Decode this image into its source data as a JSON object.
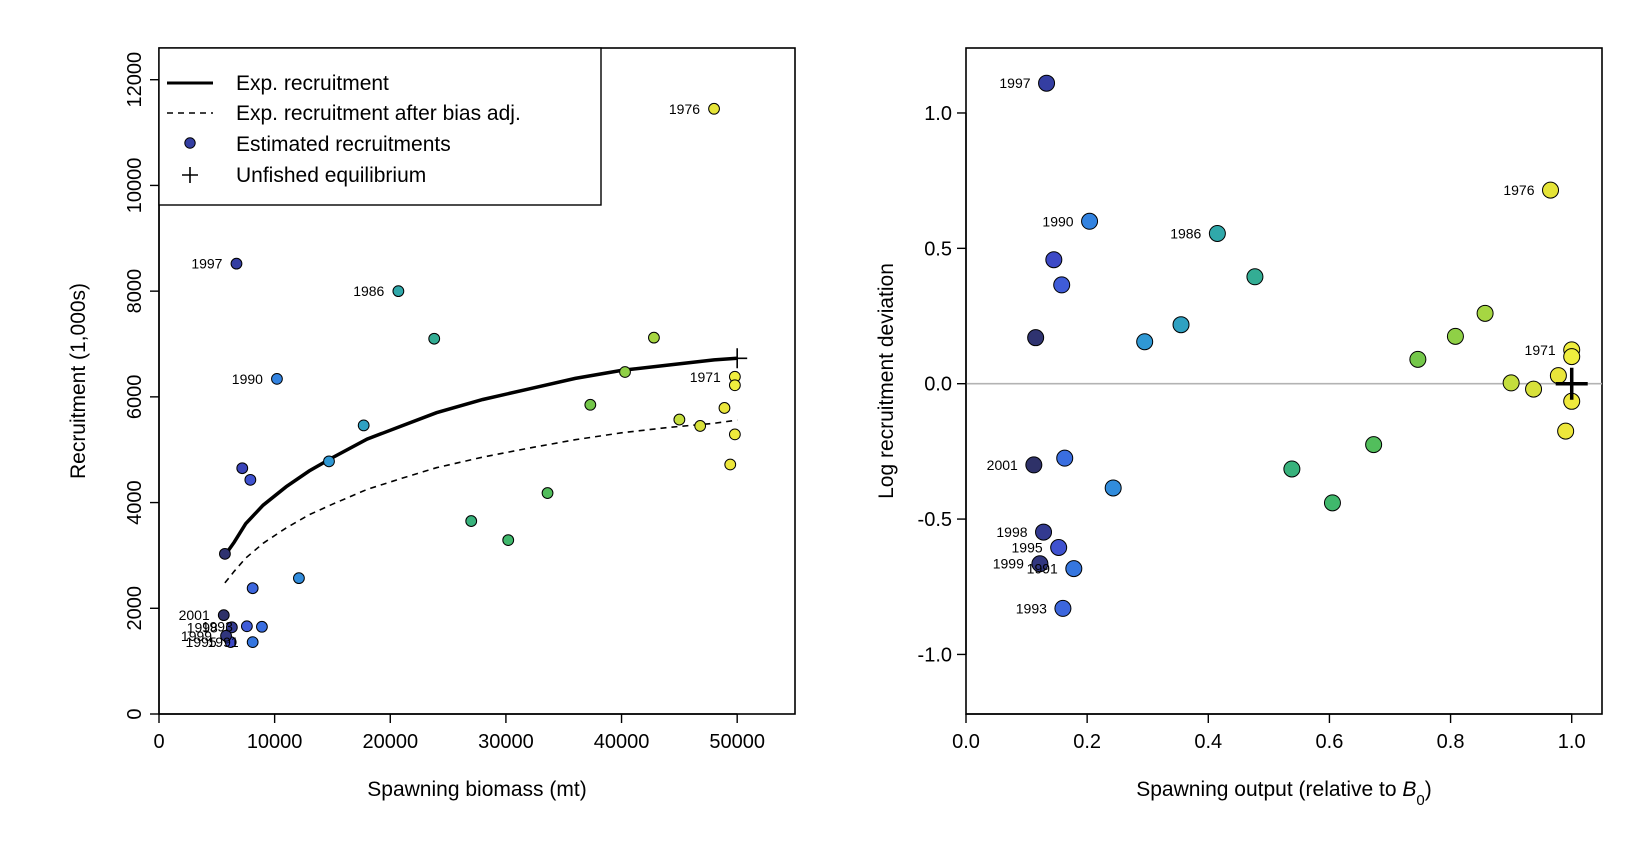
{
  "chart_data": [
    {
      "type": "scatter",
      "xlabel": "Spawning biomass (mt)",
      "ylabel": "Recruitment (1,000s)",
      "xlim": [
        0,
        55000
      ],
      "ylim": [
        0,
        12600
      ],
      "xticks": [
        0,
        10000,
        20000,
        30000,
        40000,
        50000
      ],
      "yticks": [
        0,
        2000,
        4000,
        6000,
        8000,
        10000,
        12000
      ],
      "grid": false,
      "legend_position": "top-left",
      "legend": [
        {
          "label": "Exp. recruitment",
          "symbol": "solid-line"
        },
        {
          "label": "Exp. recruitment after bias adj.",
          "symbol": "dashed-line"
        },
        {
          "label": "Estimated recruitments",
          "symbol": "dot"
        },
        {
          "label": "Unfished equilibrium",
          "symbol": "plus"
        }
      ],
      "curves": [
        {
          "name": "Exp. recruitment",
          "style": "solid",
          "x": [
            5700,
            6500,
            7500,
            9000,
            11000,
            13000,
            15000,
            18000,
            21000,
            24000,
            28000,
            32000,
            36000,
            40000,
            44000,
            48000,
            50000
          ],
          "y": [
            3000,
            3250,
            3600,
            3950,
            4300,
            4600,
            4850,
            5200,
            5450,
            5700,
            5950,
            6150,
            6350,
            6500,
            6600,
            6700,
            6730
          ]
        },
        {
          "name": "Exp. recruitment after bias adj.",
          "style": "dashed",
          "x": [
            5700,
            6500,
            7500,
            9000,
            11000,
            13000,
            15000,
            18000,
            21000,
            24000,
            28000,
            32000,
            36000,
            40000,
            44000,
            48000,
            50000
          ],
          "y": [
            2480,
            2700,
            2950,
            3230,
            3520,
            3770,
            3970,
            4250,
            4460,
            4660,
            4860,
            5030,
            5190,
            5320,
            5420,
            5500,
            5560
          ]
        },
        {
          "name": "Unfished equilibrium",
          "style": "plus",
          "x": [
            50000
          ],
          "y": [
            6730
          ]
        }
      ],
      "points": [
        {
          "x": 49800,
          "y": 6380,
          "label": "1971",
          "color": "#F0EE3E"
        },
        {
          "x": 49800,
          "y": 6220,
          "label": "",
          "color": "#F0EE3E"
        },
        {
          "x": 49800,
          "y": 5290,
          "label": "",
          "color": "#EFE93C"
        },
        {
          "x": 49400,
          "y": 4720,
          "label": "",
          "color": "#EDE73B"
        },
        {
          "x": 48900,
          "y": 5790,
          "label": "",
          "color": "#E9E53A"
        },
        {
          "x": 48000,
          "y": 11450,
          "label": "1976",
          "color": "#E5E438"
        },
        {
          "x": 46800,
          "y": 5450,
          "label": "",
          "color": "#D8E13A"
        },
        {
          "x": 45000,
          "y": 5570,
          "label": "",
          "color": "#C4DE3D"
        },
        {
          "x": 42800,
          "y": 7120,
          "label": "",
          "color": "#A6D642"
        },
        {
          "x": 40300,
          "y": 6470,
          "label": "",
          "color": "#8FD046"
        },
        {
          "x": 37300,
          "y": 5850,
          "label": "",
          "color": "#74C74A"
        },
        {
          "x": 33600,
          "y": 4180,
          "label": "",
          "color": "#52BE5C"
        },
        {
          "x": 30200,
          "y": 3290,
          "label": "",
          "color": "#40B86C"
        },
        {
          "x": 27000,
          "y": 3650,
          "label": "",
          "color": "#38B27C"
        },
        {
          "x": 23800,
          "y": 7100,
          "label": "",
          "color": "#33AD94"
        },
        {
          "x": 20700,
          "y": 8000,
          "label": "1986",
          "color": "#30A8AA"
        },
        {
          "x": 17700,
          "y": 5460,
          "label": "",
          "color": "#2FA1C2"
        },
        {
          "x": 14700,
          "y": 4780,
          "label": "",
          "color": "#2F98D4"
        },
        {
          "x": 12100,
          "y": 2570,
          "label": "",
          "color": "#318CDC"
        },
        {
          "x": 10200,
          "y": 6340,
          "label": "1990",
          "color": "#3383E0"
        },
        {
          "x": 8100,
          "y": 1360,
          "label": "1991",
          "color": "#3576DF"
        },
        {
          "x": 8900,
          "y": 1650,
          "label": "",
          "color": "#3A6EE0"
        },
        {
          "x": 8100,
          "y": 2380,
          "label": "",
          "color": "#3C66DD"
        },
        {
          "x": 7600,
          "y": 1660,
          "label": "1993",
          "color": "#3F5CD8"
        },
        {
          "x": 7900,
          "y": 4430,
          "label": "",
          "color": "#3F52D0"
        },
        {
          "x": 6200,
          "y": 1360,
          "label": "1995",
          "color": "#3D49C6"
        },
        {
          "x": 7200,
          "y": 4650,
          "label": "",
          "color": "#3A44B8"
        },
        {
          "x": 6700,
          "y": 8520,
          "label": "1997",
          "color": "#343EA2"
        },
        {
          "x": 6300,
          "y": 1640,
          "label": "1998",
          "color": "#333A90"
        },
        {
          "x": 5800,
          "y": 1480,
          "label": "1999",
          "color": "#31367E"
        },
        {
          "x": 5700,
          "y": 3030,
          "label": "",
          "color": "#2F3370"
        },
        {
          "x": 5600,
          "y": 1870,
          "label": "2001",
          "color": "#2E3168"
        }
      ]
    },
    {
      "type": "scatter",
      "xlabel": "Spawning output (relative to B0)",
      "xlabel_main": "Spawning output (relative to ",
      "xlabel_var": "B",
      "xlabel_sub": "0",
      "xlabel_end": ")",
      "ylabel": "Log recruitment deviation",
      "xlim": [
        0,
        1.05
      ],
      "ylim": [
        -1.22,
        1.24
      ],
      "xticks": [
        "0.0",
        "0.2",
        "0.4",
        "0.6",
        "0.8",
        "1.0"
      ],
      "yticks": [
        "-1.0",
        "-0.5",
        "0.0",
        "0.5",
        "1.0"
      ],
      "hline_y": 0,
      "grid": false,
      "unfished_equilibrium": {
        "x": 1.0,
        "y": 0.0
      },
      "points": [
        {
          "x": 1.0,
          "y": 0.125,
          "label": "1971",
          "color": "#F0EE3E"
        },
        {
          "x": 1.0,
          "y": 0.1,
          "label": "",
          "color": "#F0EE3E"
        },
        {
          "x": 1.0,
          "y": -0.065,
          "label": "",
          "color": "#EFE93C"
        },
        {
          "x": 0.99,
          "y": -0.175,
          "label": "",
          "color": "#EDE73B"
        },
        {
          "x": 0.978,
          "y": 0.03,
          "label": "",
          "color": "#E9E53A"
        },
        {
          "x": 0.965,
          "y": 0.715,
          "label": "1976",
          "color": "#E5E438"
        },
        {
          "x": 0.937,
          "y": -0.02,
          "label": "",
          "color": "#D8E13A"
        },
        {
          "x": 0.9,
          "y": 0.003,
          "label": "",
          "color": "#C4DE3D"
        },
        {
          "x": 0.857,
          "y": 0.26,
          "label": "",
          "color": "#A6D642"
        },
        {
          "x": 0.808,
          "y": 0.175,
          "label": "",
          "color": "#8FD046"
        },
        {
          "x": 0.746,
          "y": 0.09,
          "label": "",
          "color": "#74C74A"
        },
        {
          "x": 0.673,
          "y": -0.225,
          "label": "",
          "color": "#52BE5C"
        },
        {
          "x": 0.605,
          "y": -0.44,
          "label": "",
          "color": "#40B86C"
        },
        {
          "x": 0.538,
          "y": -0.315,
          "label": "",
          "color": "#38B27C"
        },
        {
          "x": 0.477,
          "y": 0.395,
          "label": "",
          "color": "#33AD94"
        },
        {
          "x": 0.415,
          "y": 0.555,
          "label": "1986",
          "color": "#30A8AA"
        },
        {
          "x": 0.355,
          "y": 0.218,
          "label": "",
          "color": "#2FA1C2"
        },
        {
          "x": 0.295,
          "y": 0.155,
          "label": "",
          "color": "#2F98D4"
        },
        {
          "x": 0.243,
          "y": -0.385,
          "label": "",
          "color": "#318CDC"
        },
        {
          "x": 0.204,
          "y": 0.6,
          "label": "1990",
          "color": "#3383E0"
        },
        {
          "x": 0.178,
          "y": -0.683,
          "label": "1991",
          "color": "#3576DF"
        },
        {
          "x": 0.163,
          "y": -0.275,
          "label": "",
          "color": "#3A6EE0"
        },
        {
          "x": 0.16,
          "y": -0.83,
          "label": "1993",
          "color": "#3C66DD"
        },
        {
          "x": 0.158,
          "y": 0.365,
          "label": "",
          "color": "#3F5CD8"
        },
        {
          "x": 0.153,
          "y": -0.605,
          "label": "1995",
          "color": "#3F52D0"
        },
        {
          "x": 0.145,
          "y": 0.458,
          "label": "",
          "color": "#3D49C6"
        },
        {
          "x": 0.133,
          "y": 1.11,
          "label": "1997",
          "color": "#343EA2"
        },
        {
          "x": 0.128,
          "y": -0.548,
          "label": "1998",
          "color": "#333A90"
        },
        {
          "x": 0.122,
          "y": -0.665,
          "label": "1999",
          "color": "#31367E"
        },
        {
          "x": 0.115,
          "y": 0.17,
          "label": "",
          "color": "#2F3370"
        },
        {
          "x": 0.112,
          "y": -0.3,
          "label": "2001",
          "color": "#2E3168"
        }
      ]
    }
  ]
}
